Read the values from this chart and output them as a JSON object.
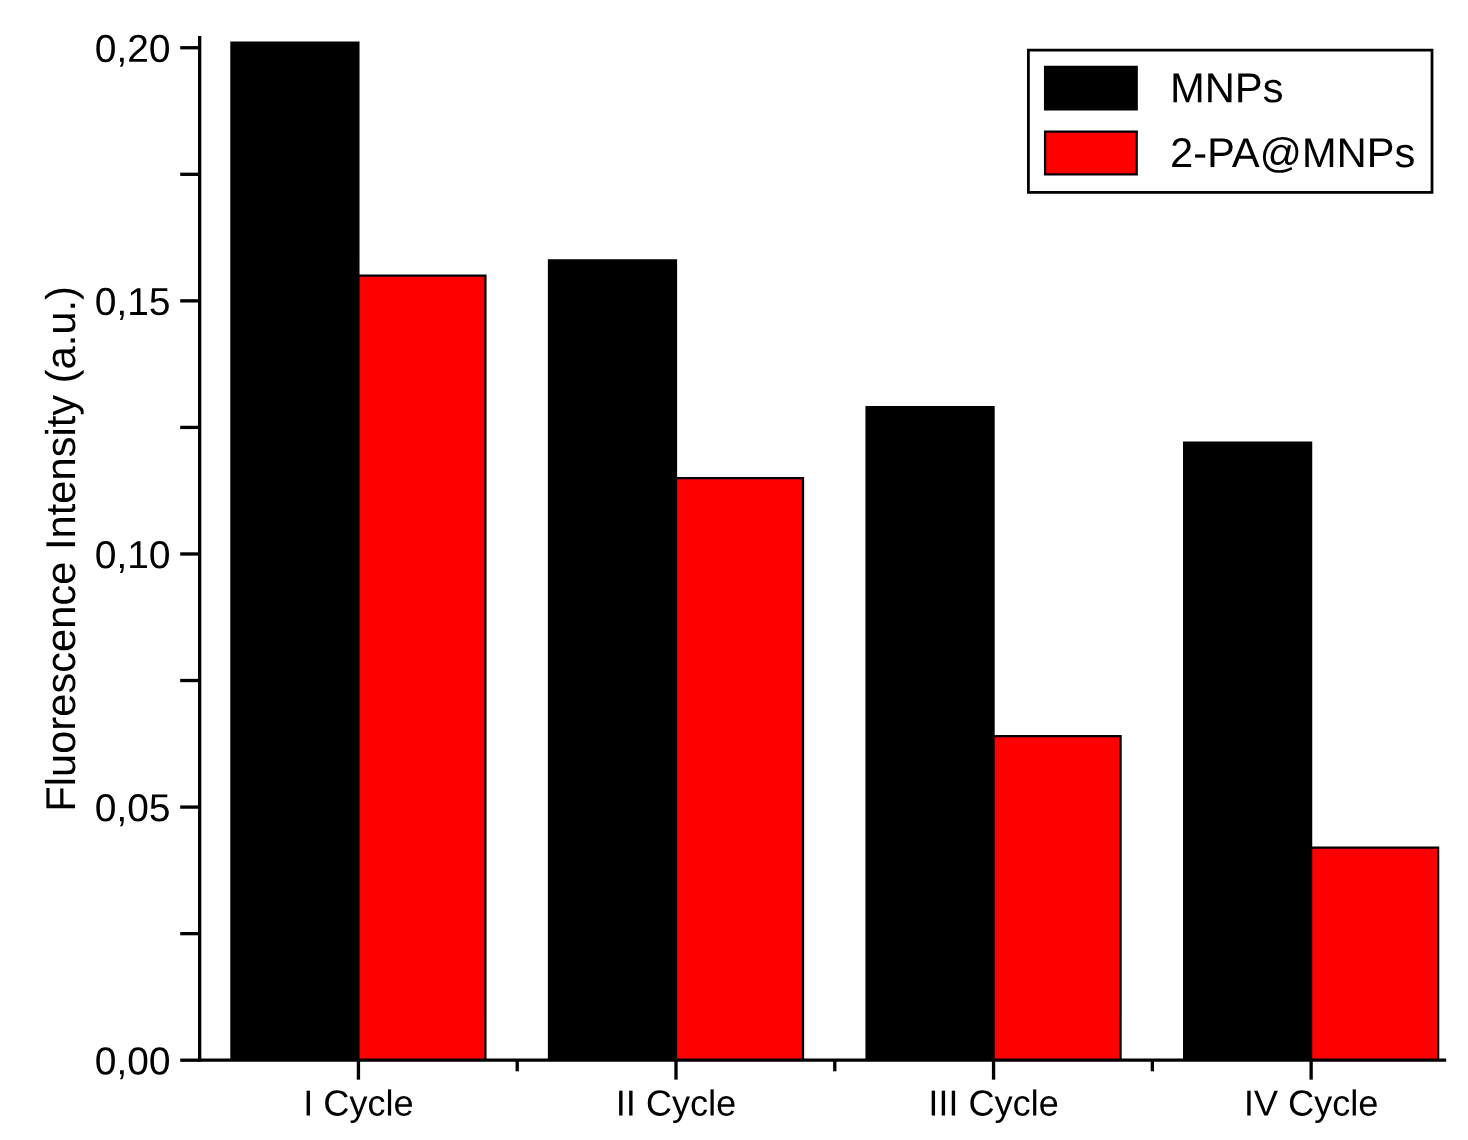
{
  "chart_data": {
    "type": "bar",
    "ylabel": "Fluorescence Intensity (a.u.)",
    "categories": [
      "I Cycle",
      "II Cycle",
      "III Cycle",
      "IV Cycle"
    ],
    "series": [
      {
        "name": "MNPs",
        "color": "#000000",
        "values": [
          0.201,
          0.158,
          0.129,
          0.122
        ]
      },
      {
        "name": "2-PA@MNPs",
        "color": "#ff0000",
        "values": [
          0.155,
          0.115,
          0.064,
          0.042
        ]
      }
    ],
    "ylim": [
      0,
      0.202
    ],
    "yticks": [
      {
        "value": 0,
        "label": "0,00"
      },
      {
        "value": 0.025,
        "label": null
      },
      {
        "value": 0.05,
        "label": "0,05"
      },
      {
        "value": 0.075,
        "label": null
      },
      {
        "value": 0.1,
        "label": "0,10"
      },
      {
        "value": 0.125,
        "label": null
      },
      {
        "value": 0.15,
        "label": "0,15"
      },
      {
        "value": 0.175,
        "label": null
      },
      {
        "value": 0.2,
        "label": "0,20"
      }
    ],
    "grid": false,
    "legend": "top right"
  }
}
